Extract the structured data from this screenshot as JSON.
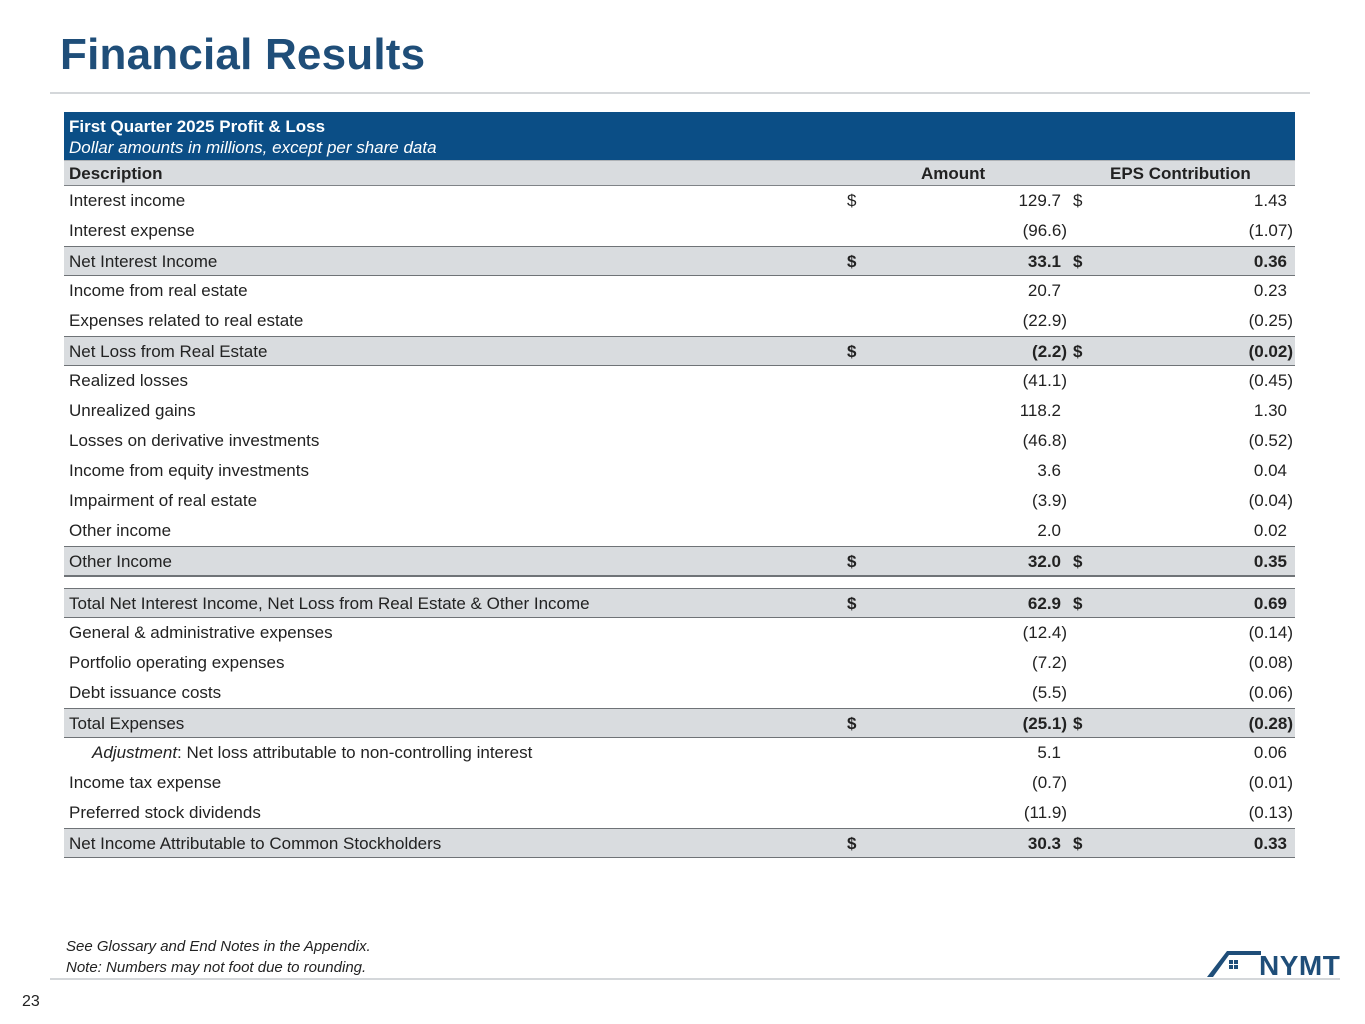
{
  "header": {
    "title": "Financial Results"
  },
  "table": {
    "title": "First Quarter 2025 Profit & Loss",
    "subtitle": "Dollar amounts in millions, except per share data",
    "col_description": "Description",
    "col_amount": "Amount",
    "col_eps": "EPS Contribution",
    "rows": [
      {
        "desc": "Interest income",
        "dol1": "$",
        "amount": "129.7",
        "dol2": "$",
        "eps": "1.43"
      },
      {
        "desc": "Interest expense",
        "dol1": "",
        "amount": "(96.6)",
        "dol2": "",
        "eps": "(1.07)"
      },
      {
        "desc": "Net Interest Income",
        "dol1": "$",
        "amount": "33.1",
        "dol2": "$",
        "eps": "0.36"
      },
      {
        "desc": "Income from real estate",
        "dol1": "",
        "amount": "20.7",
        "dol2": "",
        "eps": "0.23"
      },
      {
        "desc": "Expenses related to real estate",
        "dol1": "",
        "amount": "(22.9)",
        "dol2": "",
        "eps": "(0.25)"
      },
      {
        "desc": "Net Loss from Real Estate",
        "dol1": "$",
        "amount": "(2.2)",
        "dol2": "$",
        "eps": "(0.02)"
      },
      {
        "desc": "Realized losses",
        "dol1": "",
        "amount": "(41.1)",
        "dol2": "",
        "eps": "(0.45)"
      },
      {
        "desc": "Unrealized gains",
        "dol1": "",
        "amount": "118.2",
        "dol2": "",
        "eps": "1.30"
      },
      {
        "desc": "Losses on derivative investments",
        "dol1": "",
        "amount": "(46.8)",
        "dol2": "",
        "eps": "(0.52)"
      },
      {
        "desc": "Income from equity investments",
        "dol1": "",
        "amount": "3.6",
        "dol2": "",
        "eps": "0.04"
      },
      {
        "desc": "Impairment of real estate",
        "dol1": "",
        "amount": "(3.9)",
        "dol2": "",
        "eps": "(0.04)"
      },
      {
        "desc": "Other income",
        "dol1": "",
        "amount": "2.0",
        "dol2": "",
        "eps": "0.02"
      },
      {
        "desc": "Other Income",
        "dol1": "$",
        "amount": "32.0",
        "dol2": "$",
        "eps": "0.35"
      },
      {
        "desc": "Total Net Interest Income, Net Loss from Real Estate & Other Income",
        "dol1": "$",
        "amount": "62.9",
        "dol2": "$",
        "eps": "0.69"
      },
      {
        "desc": "General & administrative expenses",
        "dol1": "",
        "amount": "(12.4)",
        "dol2": "",
        "eps": "(0.14)"
      },
      {
        "desc": "Portfolio operating expenses",
        "dol1": "",
        "amount": "(7.2)",
        "dol2": "",
        "eps": "(0.08)"
      },
      {
        "desc": "Debt issuance costs",
        "dol1": "",
        "amount": "(5.5)",
        "dol2": "",
        "eps": "(0.06)"
      },
      {
        "desc": "Total Expenses",
        "dol1": "$",
        "amount": "(25.1)",
        "dol2": "$",
        "eps": "(0.28)"
      },
      {
        "desc_italic": "Adjustment",
        "desc": ": Net loss attributable to non-controlling interest",
        "dol1": "",
        "amount": "5.1",
        "dol2": "",
        "eps": "0.06"
      },
      {
        "desc": "Income tax expense",
        "dol1": "",
        "amount": "(0.7)",
        "dol2": "",
        "eps": "(0.01)"
      },
      {
        "desc": "Preferred stock dividends",
        "dol1": "",
        "amount": "(11.9)",
        "dol2": "",
        "eps": "(0.13)"
      },
      {
        "desc": "Net Income Attributable to Common Stockholders",
        "dol1": "$",
        "amount": "30.3",
        "dol2": "$",
        "eps": "0.33"
      }
    ]
  },
  "footer": {
    "note1": "See Glossary and End Notes in the Appendix.",
    "note2": "Note: Numbers may not foot due to rounding.",
    "page_number": "23",
    "logo_text": "NYMT"
  },
  "colors": {
    "title": "#1f4e79",
    "table_header_band": "#0b4e86",
    "subtotal_fill": "#d9dcdf"
  }
}
